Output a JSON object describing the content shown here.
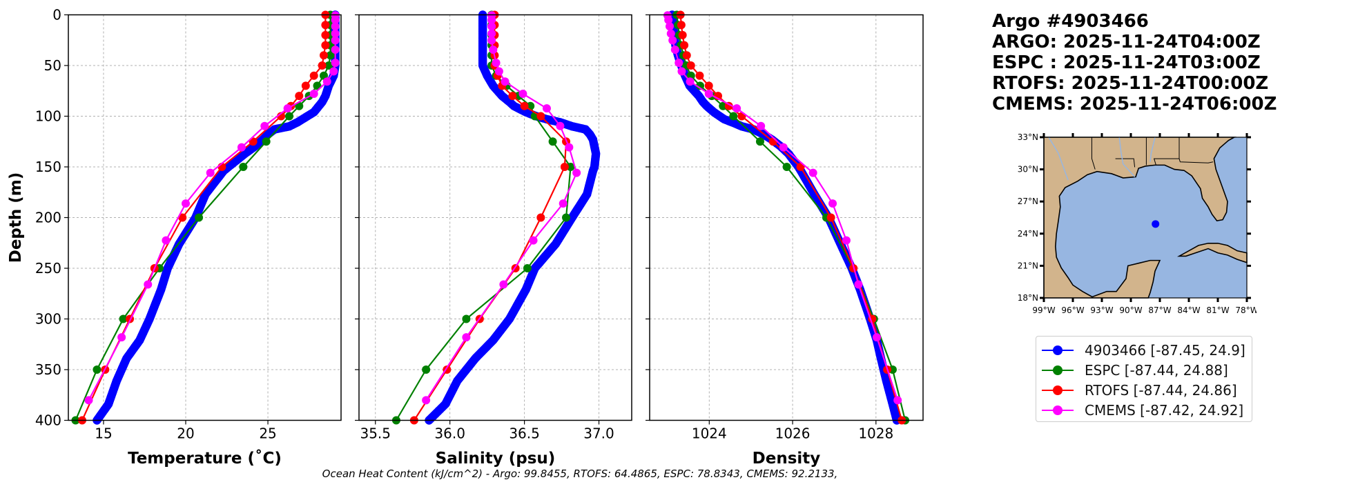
{
  "title": {
    "lines": [
      "Argo #4903466",
      "ARGO: 2025-11-24T04:00Z",
      "ESPC : 2025-11-24T03:00Z",
      "RTOFS: 2025-11-24T00:00Z",
      "CMEMS: 2025-11-24T06:00Z"
    ]
  },
  "footer": "Ocean Heat Content (kJ/cm^2) - Argo: 99.8455,  RTOFS: 64.4865,  ESPC: 78.8343,  CMEMS: 92.2133,",
  "legend": [
    {
      "label": "4903466 [-87.45, 24.9]",
      "color": "#0000ff"
    },
    {
      "label": "ESPC [-87.44, 24.88]",
      "color": "#008000"
    },
    {
      "label": "RTOFS [-87.44, 24.86]",
      "color": "#ff0000"
    },
    {
      "label": "CMEMS [-87.42, 24.92]",
      "color": "#ff00ff"
    }
  ],
  "map": {
    "lat_labels": [
      "18°N",
      "21°N",
      "24°N",
      "27°N",
      "30°N",
      "33°N"
    ],
    "lon_labels": [
      "99°W",
      "96°W",
      "93°W",
      "90°W",
      "87°W",
      "84°W",
      "81°W",
      "78°W"
    ],
    "lon_range": [
      -99,
      -78
    ],
    "lat_range": [
      18,
      33
    ],
    "float_position": [
      -87.45,
      24.9
    ],
    "land_color": "#d2b48c",
    "ocean_color": "#97b6e1",
    "float_color": "#0000ff"
  },
  "chart_data": [
    {
      "type": "line",
      "id": "temperature",
      "xlabel": "Temperature (˚C)",
      "ylabel": "Depth (m)",
      "xlim": [
        12.86,
        29.45
      ],
      "ylim": [
        400,
        0
      ],
      "grid": true,
      "xticks": [
        15,
        20,
        25
      ],
      "xtick_labels": [
        "15",
        "20",
        "25"
      ],
      "yticks": [
        0,
        50,
        100,
        150,
        200,
        250,
        300,
        350,
        400
      ],
      "ytick_labels": [
        "0",
        "50",
        "100",
        "150",
        "200",
        "250",
        "300",
        "350",
        "400"
      ],
      "series": [
        {
          "name": "4903466",
          "color": "#0000ff",
          "depth": [
            0,
            10,
            20,
            30,
            40,
            50,
            60,
            70,
            80,
            86,
            90,
            96,
            100,
            103,
            106,
            110,
            113,
            118,
            123,
            130,
            137,
            150,
            154,
            177,
            200,
            226,
            250,
            271,
            300,
            321,
            339,
            361,
            384,
            400
          ],
          "values": [
            29.1,
            29.1,
            29.1,
            29.1,
            29.1,
            29.1,
            29.0,
            28.7,
            28.5,
            28.3,
            28.1,
            27.8,
            27.4,
            27.1,
            26.8,
            26.3,
            25.4,
            25.0,
            24.7,
            24.2,
            23.6,
            22.6,
            22.3,
            21.2,
            20.6,
            19.6,
            18.9,
            18.5,
            17.8,
            17.2,
            16.4,
            15.8,
            15.3,
            14.6
          ]
        },
        {
          "name": "ESPC",
          "color": "#008000",
          "depth": [
            0,
            10,
            20,
            30,
            40,
            50,
            60,
            70,
            80,
            90,
            100,
            125,
            150,
            200,
            250,
            300,
            350,
            400
          ],
          "values": [
            28.8,
            28.8,
            28.8,
            28.8,
            28.8,
            28.7,
            28.4,
            28.0,
            27.5,
            26.9,
            26.3,
            24.9,
            23.5,
            20.8,
            18.4,
            16.2,
            14.6,
            13.3
          ]
        },
        {
          "name": "RTOFS",
          "color": "#ff0000",
          "depth": [
            0,
            10,
            20,
            30,
            40,
            50,
            60,
            70,
            80,
            90,
            100,
            125,
            150,
            200,
            250,
            300,
            350,
            400
          ],
          "values": [
            28.5,
            28.5,
            28.5,
            28.5,
            28.4,
            28.3,
            27.8,
            27.3,
            26.9,
            26.4,
            25.8,
            24.1,
            22.2,
            19.8,
            18.1,
            16.6,
            15.1,
            13.7
          ]
        },
        {
          "name": "CMEMS",
          "color": "#ff00ff",
          "depth": [
            0.5,
            5.1,
            11.4,
            18.5,
            25.2,
            34.4,
            47.4,
            55.8,
            65.8,
            77.9,
            92.3,
            109.7,
            130.7,
            155.9,
            186.1,
            222.5,
            266.0,
            318.1,
            380.2
          ],
          "values": [
            29.1,
            29.1,
            29.1,
            29.1,
            29.1,
            29.1,
            29.1,
            29.0,
            28.6,
            27.8,
            26.2,
            24.8,
            23.4,
            21.5,
            20.0,
            18.8,
            17.7,
            16.1,
            14.1
          ]
        }
      ]
    },
    {
      "type": "line",
      "id": "salinity",
      "xlabel": "Salinity (psu)",
      "ylabel": "",
      "xlim": [
        35.39,
        37.22
      ],
      "ylim": [
        400,
        0
      ],
      "grid": true,
      "xticks": [
        35.5,
        36.0,
        36.5,
        37.0
      ],
      "xtick_labels": [
        "35.5",
        "36.0",
        "36.5",
        "37.0"
      ],
      "yticks": [
        0,
        50,
        100,
        150,
        200,
        250,
        300,
        350,
        400
      ],
      "series": [
        {
          "name": "4903466",
          "color": "#0000ff",
          "depth": [
            0,
            10,
            20,
            30,
            40,
            50,
            60,
            70,
            80,
            86,
            90,
            96,
            100,
            103,
            106,
            110,
            113,
            118,
            123,
            130,
            137,
            150,
            154,
            177,
            200,
            226,
            250,
            271,
            300,
            321,
            339,
            361,
            384,
            400
          ],
          "values": [
            36.22,
            36.22,
            36.22,
            36.22,
            36.22,
            36.22,
            36.25,
            36.29,
            36.35,
            36.4,
            36.43,
            36.51,
            36.58,
            36.65,
            36.74,
            36.82,
            36.91,
            36.94,
            36.96,
            36.97,
            36.98,
            36.97,
            36.96,
            36.92,
            36.82,
            36.71,
            36.57,
            36.51,
            36.4,
            36.29,
            36.17,
            36.05,
            35.97,
            35.86
          ]
        },
        {
          "name": "ESPC",
          "color": "#008000",
          "depth": [
            0,
            10,
            20,
            30,
            40,
            50,
            60,
            70,
            80,
            90,
            100,
            125,
            150,
            200,
            250,
            300,
            350,
            400
          ],
          "values": [
            36.28,
            36.28,
            36.28,
            36.28,
            36.28,
            36.28,
            36.31,
            36.38,
            36.46,
            36.54,
            36.57,
            36.69,
            36.81,
            36.78,
            36.52,
            36.11,
            35.84,
            35.64
          ]
        },
        {
          "name": "RTOFS",
          "color": "#ff0000",
          "depth": [
            0,
            10,
            20,
            30,
            40,
            50,
            60,
            70,
            80,
            90,
            100,
            125,
            150,
            200,
            250,
            300,
            350,
            400
          ],
          "values": [
            36.3,
            36.3,
            36.3,
            36.3,
            36.3,
            36.3,
            36.32,
            36.35,
            36.42,
            36.5,
            36.61,
            36.78,
            36.77,
            36.61,
            36.44,
            36.2,
            35.98,
            35.76
          ]
        },
        {
          "name": "CMEMS",
          "color": "#ff00ff",
          "depth": [
            0.5,
            5.1,
            11.4,
            18.5,
            25.2,
            34.4,
            47.4,
            55.8,
            65.8,
            77.9,
            92.3,
            109.7,
            130.7,
            155.9,
            186.1,
            222.5,
            266.0,
            318.1,
            380.2
          ],
          "values": [
            36.28,
            36.28,
            36.28,
            36.28,
            36.28,
            36.29,
            36.31,
            36.33,
            36.37,
            36.49,
            36.65,
            36.74,
            36.8,
            36.85,
            36.76,
            36.56,
            36.36,
            36.11,
            35.84
          ]
        }
      ]
    },
    {
      "type": "line",
      "id": "density",
      "xlabel": "Density",
      "ylabel": "",
      "xlim": [
        1022.57,
        1029.13
      ],
      "ylim": [
        400,
        0
      ],
      "grid": true,
      "xticks": [
        1024,
        1026,
        1028
      ],
      "xtick_labels": [
        "1024",
        "1026",
        "1028"
      ],
      "yticks": [
        0,
        50,
        100,
        150,
        200,
        250,
        300,
        350,
        400
      ],
      "series": [
        {
          "name": "4903466",
          "color": "#0000ff",
          "depth": [
            0,
            10,
            20,
            30,
            40,
            50,
            60,
            70,
            80,
            86,
            90,
            96,
            100,
            103,
            106,
            110,
            113,
            118,
            123,
            130,
            137,
            150,
            154,
            177,
            200,
            226,
            250,
            271,
            300,
            321,
            339,
            361,
            384,
            400
          ],
          "values": [
            1023.11,
            1023.13,
            1023.16,
            1023.19,
            1023.25,
            1023.33,
            1023.42,
            1023.53,
            1023.75,
            1023.85,
            1023.94,
            1024.11,
            1024.25,
            1024.36,
            1024.55,
            1024.78,
            1025.06,
            1025.3,
            1025.5,
            1025.72,
            1025.9,
            1026.14,
            1026.2,
            1026.52,
            1026.86,
            1027.15,
            1027.42,
            1027.62,
            1027.86,
            1028.02,
            1028.12,
            1028.25,
            1028.4,
            1028.5
          ]
        },
        {
          "name": "ESPC",
          "color": "#008000",
          "depth": [
            0,
            10,
            20,
            30,
            40,
            50,
            60,
            70,
            80,
            90,
            100,
            125,
            150,
            200,
            250,
            300,
            350,
            400
          ],
          "values": [
            1023.22,
            1023.25,
            1023.28,
            1023.32,
            1023.38,
            1023.45,
            1023.56,
            1023.78,
            1024.06,
            1024.33,
            1024.58,
            1025.22,
            1025.86,
            1026.81,
            1027.45,
            1027.95,
            1028.4,
            1028.7
          ]
        },
        {
          "name": "RTOFS",
          "color": "#ff0000",
          "depth": [
            0,
            10,
            20,
            30,
            40,
            50,
            60,
            70,
            80,
            90,
            100,
            125,
            150,
            200,
            250,
            300,
            350,
            400
          ],
          "values": [
            1023.31,
            1023.33,
            1023.36,
            1023.4,
            1023.46,
            1023.56,
            1023.77,
            1023.99,
            1024.21,
            1024.47,
            1024.78,
            1025.53,
            1026.19,
            1026.92,
            1027.46,
            1027.91,
            1028.27,
            1028.62
          ]
        },
        {
          "name": "CMEMS",
          "color": "#ff00ff",
          "depth": [
            0.5,
            5.1,
            11.4,
            18.5,
            25.2,
            34.4,
            47.4,
            55.8,
            65.8,
            77.9,
            92.3,
            109.7,
            130.7,
            155.9,
            186.1,
            222.5,
            266.0,
            318.1,
            380.2
          ],
          "values": [
            1023.0,
            1023.02,
            1023.05,
            1023.08,
            1023.12,
            1023.18,
            1023.27,
            1023.34,
            1023.54,
            1023.99,
            1024.66,
            1025.24,
            1025.78,
            1026.49,
            1026.96,
            1027.29,
            1027.58,
            1028.02,
            1028.52
          ]
        }
      ]
    }
  ]
}
